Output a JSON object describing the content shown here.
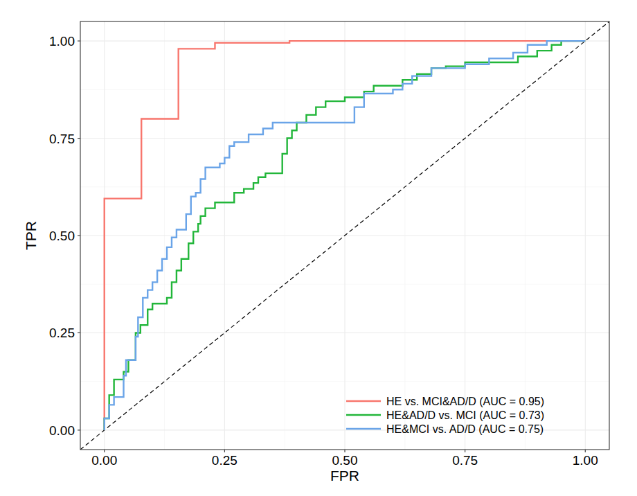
{
  "chart_data": {
    "type": "line",
    "x_label": "FPR",
    "y_label": "TPR",
    "xlim": [
      -0.05,
      1.05
    ],
    "ylim": [
      -0.05,
      1.05
    ],
    "xticks": [
      {
        "value": 0,
        "label": "0.00"
      },
      {
        "value": 0.25,
        "label": "0.25"
      },
      {
        "value": 0.5,
        "label": "0.50"
      },
      {
        "value": 0.75,
        "label": "0.75"
      },
      {
        "value": 1,
        "label": "1.00"
      }
    ],
    "yticks": [
      {
        "value": 0,
        "label": "0.00"
      },
      {
        "value": 0.25,
        "label": "0.25"
      },
      {
        "value": 0.5,
        "label": "0.50"
      },
      {
        "value": 0.75,
        "label": "0.75"
      },
      {
        "value": 1,
        "label": "1.00"
      }
    ],
    "grid": true,
    "legend": "bottom-right",
    "reference_line": {
      "x": [
        -0.05,
        1.05
      ],
      "values": [
        -0.05,
        1.05
      ],
      "color": "#000000",
      "line_style": "dashed"
    },
    "series": [
      {
        "name": "HE vs. MCI&AD/D (AUC = 0.95)",
        "color": "#F8766D",
        "line_style": "solid",
        "x": [
          0,
          0,
          0.077,
          0.077,
          0.154,
          0.154,
          0.23,
          0.23,
          0.385,
          0.385,
          1
        ],
        "values": [
          0,
          0.595,
          0.595,
          0.8,
          0.8,
          0.98,
          0.98,
          0.995,
          0.995,
          1,
          1
        ]
      },
      {
        "name": "HE&AD/D vs. MCI (AUC = 0.73)",
        "color": "#22B63A",
        "line_style": "solid",
        "x": [
          0,
          0,
          0.01,
          0.01,
          0.02,
          0.02,
          0.04,
          0.04,
          0.05,
          0.05,
          0.065,
          0.065,
          0.075,
          0.075,
          0.09,
          0.09,
          0.1,
          0.1,
          0.13,
          0.13,
          0.14,
          0.14,
          0.15,
          0.15,
          0.16,
          0.16,
          0.175,
          0.175,
          0.185,
          0.185,
          0.195,
          0.195,
          0.2,
          0.2,
          0.21,
          0.21,
          0.23,
          0.23,
          0.27,
          0.27,
          0.29,
          0.29,
          0.31,
          0.31,
          0.32,
          0.32,
          0.335,
          0.335,
          0.37,
          0.37,
          0.38,
          0.38,
          0.39,
          0.39,
          0.4,
          0.4,
          0.42,
          0.42,
          0.44,
          0.44,
          0.46,
          0.46,
          0.5,
          0.5,
          0.54,
          0.54,
          0.56,
          0.56,
          0.62,
          0.62,
          0.65,
          0.65,
          0.68,
          0.68,
          0.71,
          0.71,
          0.75,
          0.75,
          0.86,
          0.86,
          0.9,
          0.9,
          0.93,
          0.93,
          0.95,
          0.95,
          1
        ],
        "values": [
          0,
          0.03,
          0.03,
          0.09,
          0.09,
          0.13,
          0.13,
          0.15,
          0.15,
          0.18,
          0.18,
          0.25,
          0.25,
          0.27,
          0.27,
          0.31,
          0.31,
          0.325,
          0.325,
          0.34,
          0.34,
          0.38,
          0.38,
          0.41,
          0.41,
          0.44,
          0.44,
          0.48,
          0.48,
          0.51,
          0.51,
          0.53,
          0.53,
          0.55,
          0.55,
          0.57,
          0.57,
          0.585,
          0.585,
          0.61,
          0.61,
          0.62,
          0.62,
          0.635,
          0.635,
          0.65,
          0.65,
          0.66,
          0.66,
          0.71,
          0.71,
          0.75,
          0.75,
          0.77,
          0.77,
          0.79,
          0.79,
          0.81,
          0.81,
          0.83,
          0.83,
          0.845,
          0.845,
          0.855,
          0.855,
          0.87,
          0.87,
          0.885,
          0.885,
          0.9,
          0.9,
          0.915,
          0.915,
          0.93,
          0.93,
          0.935,
          0.935,
          0.945,
          0.945,
          0.96,
          0.96,
          0.975,
          0.975,
          0.99,
          0.99,
          1,
          1
        ]
      },
      {
        "name": "HE&MCI vs. AD/D (AUC = 0.75)",
        "color": "#6AA4E8",
        "line_style": "solid",
        "x": [
          0,
          0,
          0.01,
          0.01,
          0.02,
          0.02,
          0.04,
          0.04,
          0.045,
          0.045,
          0.065,
          0.065,
          0.07,
          0.07,
          0.08,
          0.08,
          0.09,
          0.09,
          0.1,
          0.1,
          0.11,
          0.11,
          0.12,
          0.12,
          0.13,
          0.13,
          0.14,
          0.14,
          0.15,
          0.15,
          0.17,
          0.17,
          0.18,
          0.18,
          0.19,
          0.19,
          0.2,
          0.2,
          0.21,
          0.21,
          0.24,
          0.24,
          0.25,
          0.25,
          0.26,
          0.26,
          0.27,
          0.27,
          0.3,
          0.3,
          0.33,
          0.33,
          0.35,
          0.35,
          0.52,
          0.52,
          0.54,
          0.54,
          0.6,
          0.6,
          0.62,
          0.62,
          0.64,
          0.64,
          0.68,
          0.68,
          0.75,
          0.75,
          0.8,
          0.8,
          0.85,
          0.85,
          0.88,
          0.88,
          0.92,
          0.92,
          1
        ],
        "values": [
          0,
          0.03,
          0.03,
          0.065,
          0.065,
          0.085,
          0.085,
          0.14,
          0.14,
          0.18,
          0.18,
          0.24,
          0.24,
          0.29,
          0.29,
          0.34,
          0.34,
          0.36,
          0.36,
          0.38,
          0.38,
          0.41,
          0.41,
          0.44,
          0.44,
          0.47,
          0.47,
          0.495,
          0.495,
          0.515,
          0.515,
          0.555,
          0.555,
          0.6,
          0.6,
          0.61,
          0.61,
          0.645,
          0.645,
          0.675,
          0.675,
          0.685,
          0.685,
          0.7,
          0.7,
          0.73,
          0.73,
          0.74,
          0.74,
          0.76,
          0.76,
          0.775,
          0.775,
          0.79,
          0.79,
          0.83,
          0.83,
          0.865,
          0.865,
          0.875,
          0.875,
          0.89,
          0.89,
          0.91,
          0.91,
          0.93,
          0.93,
          0.94,
          0.94,
          0.955,
          0.955,
          0.97,
          0.97,
          0.99,
          0.99,
          1,
          1
        ]
      }
    ]
  }
}
